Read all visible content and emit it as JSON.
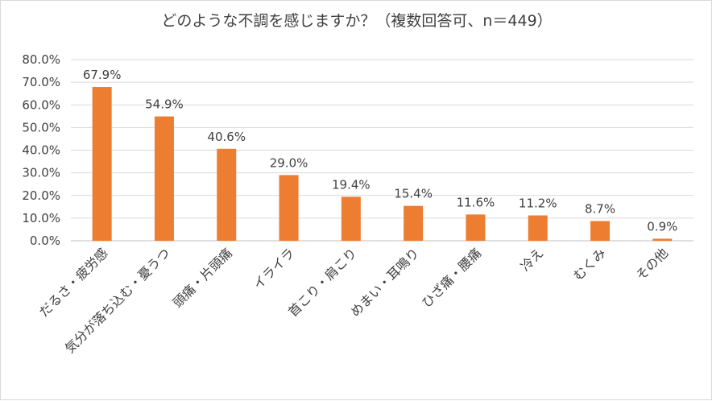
{
  "chart_data": {
    "type": "bar",
    "title": "どのような不調を感じますか？（複数回答可、n＝449）",
    "categories": [
      "だるさ・疲労感",
      "気分が落ち込む・憂うつ",
      "頭痛・片頭痛",
      "イライラ",
      "首こり・肩こり",
      "めまい・耳鳴り",
      "ひざ痛・腰痛",
      "冷え",
      "むくみ",
      "その他"
    ],
    "values": [
      67.9,
      54.9,
      40.6,
      29.0,
      19.4,
      15.4,
      11.6,
      11.2,
      8.7,
      0.9
    ],
    "data_labels": [
      "67.9%",
      "54.9%",
      "40.6%",
      "29.0%",
      "19.4%",
      "15.4%",
      "11.6%",
      "11.2%",
      "8.7%",
      "0.9%"
    ],
    "y_ticks": [
      "0.0%",
      "10.0%",
      "20.0%",
      "30.0%",
      "40.0%",
      "50.0%",
      "60.0%",
      "70.0%",
      "80.0%"
    ],
    "ylim": [
      0,
      80
    ],
    "xlabel": "",
    "ylabel": "",
    "grid": true,
    "legend": "none",
    "bar_color": "#ED7D31",
    "grid_color": "#D9D9D9"
  }
}
